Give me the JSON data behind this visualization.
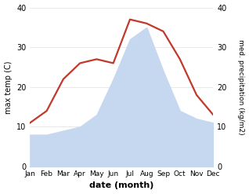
{
  "months": [
    "Jan",
    "Feb",
    "Mar",
    "Apr",
    "May",
    "Jun",
    "Jul",
    "Aug",
    "Sep",
    "Oct",
    "Nov",
    "Dec"
  ],
  "temperature": [
    11,
    14,
    22,
    26,
    27,
    26,
    37,
    36,
    34,
    27,
    18,
    13
  ],
  "precipitation": [
    8,
    8,
    9,
    10,
    13,
    22,
    32,
    35,
    24,
    14,
    12,
    11
  ],
  "temp_color": "#c0392b",
  "precip_color": "#c5d8f0",
  "precip_edge_color": "#c5d8f0",
  "precip_fill_alpha": 1.0,
  "xlabel": "date (month)",
  "ylabel_left": "max temp (C)",
  "ylabel_right": "med. precipitation (kg/m2)",
  "ylim": [
    0,
    40
  ],
  "bg_color": "#ffffff",
  "line_width": 1.6
}
